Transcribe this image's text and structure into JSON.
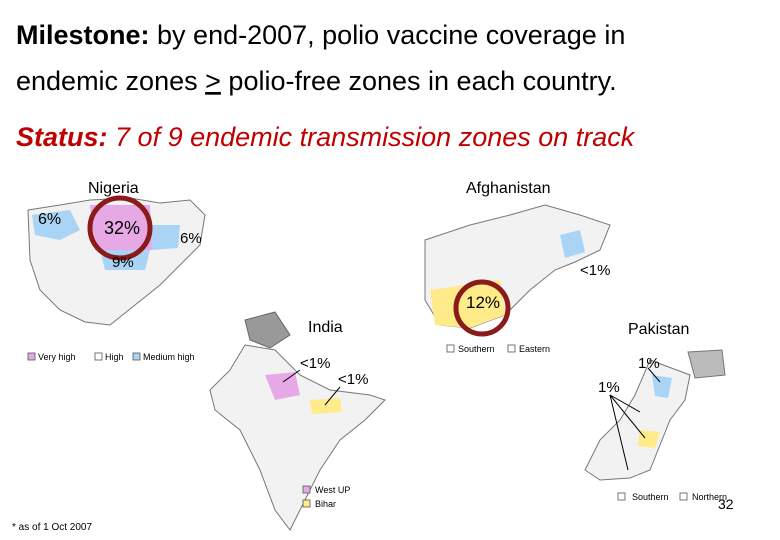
{
  "title": {
    "label": "Milestone:",
    "line1": "by end-2007, polio vaccine coverage in",
    "line2_start": "endemic zones",
    "line2_mark": ">",
    "line2_end": "polio-free zones in each country."
  },
  "status": {
    "label": "Status:",
    "text": "7 of 9 endemic transmission zones on track"
  },
  "nigeria": {
    "name": "Nigeria",
    "labels": [
      "6%",
      "32%",
      "6%",
      "9%"
    ],
    "legend": [
      "Very high",
      "High",
      "Medium high"
    ]
  },
  "afghanistan": {
    "name": "Afghanistan",
    "labels": [
      "<1%",
      "12%"
    ],
    "legend": [
      "Southern",
      "Eastern"
    ]
  },
  "india": {
    "name": "India",
    "labels": [
      "<1%",
      "<1%"
    ],
    "legend": [
      "West UP",
      "Bihar"
    ]
  },
  "pakistan": {
    "name": "Pakistan",
    "labels": [
      "1%",
      "1%"
    ],
    "legend": [
      "Southern",
      "Northern"
    ]
  },
  "footnote": "* as of 1 Oct 2007",
  "page_number": "32"
}
